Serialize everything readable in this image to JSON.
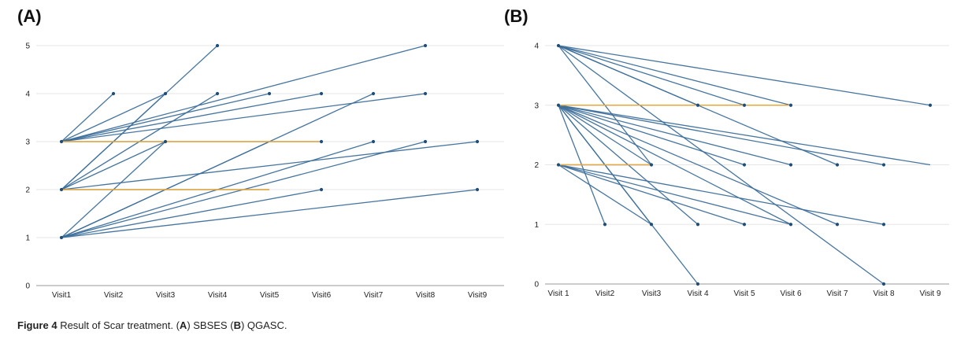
{
  "figure": {
    "caption_prefix": "Figure 4",
    "caption_text": " Result of Scar treatment. (",
    "caption_a": "A",
    "caption_mid1": ") SBSES (",
    "caption_b": "B",
    "caption_mid2": ") QGASC."
  },
  "colors": {
    "line": "#3c6e9a",
    "highlight": "#e8a73a",
    "grid": "#e6e6e6",
    "axis": "#999999"
  },
  "chart_data": [
    {
      "panel": "(A)",
      "type": "line",
      "categories": [
        "Visit1",
        "Visit2",
        "Visit3",
        "Visit4",
        "Visit5",
        "Visit6",
        "Visit7",
        "Visit8",
        "Visit9"
      ],
      "y_ticks": [
        "0",
        "1",
        "2",
        "3",
        "4",
        "5"
      ],
      "ylim": [
        0,
        5
      ],
      "grid": true,
      "segments": [
        [
          1,
          3,
          2,
          4
        ],
        [
          1,
          3,
          3,
          4
        ],
        [
          1,
          3,
          5,
          4
        ],
        [
          1,
          3,
          6,
          4
        ],
        [
          1,
          3,
          8,
          4
        ],
        [
          1,
          3,
          8,
          5
        ],
        [
          1,
          3,
          6,
          3
        ],
        [
          1,
          2,
          3,
          4
        ],
        [
          1,
          2,
          4,
          5
        ],
        [
          1,
          2,
          3,
          3
        ],
        [
          1,
          2,
          4,
          4
        ],
        [
          1,
          2,
          9,
          3
        ],
        [
          1,
          2,
          5,
          2
        ],
        [
          1,
          1,
          3,
          3
        ],
        [
          1,
          1,
          5,
          3
        ],
        [
          1,
          1,
          6,
          2
        ],
        [
          1,
          1,
          7,
          3
        ],
        [
          1,
          1,
          7,
          4
        ],
        [
          1,
          1,
          9,
          2
        ],
        [
          1,
          1,
          8,
          3
        ]
      ],
      "highlight_segments": [
        [
          1,
          3,
          6,
          3
        ],
        [
          1,
          2,
          5,
          2
        ]
      ],
      "points": [
        [
          1,
          1
        ],
        [
          1,
          2
        ],
        [
          1,
          3
        ],
        [
          2,
          4
        ],
        [
          3,
          3
        ],
        [
          3,
          4
        ],
        [
          4,
          4
        ],
        [
          4,
          5
        ],
        [
          5,
          4
        ],
        [
          6,
          2
        ],
        [
          6,
          3
        ],
        [
          6,
          4
        ],
        [
          7,
          3
        ],
        [
          7,
          4
        ],
        [
          8,
          3
        ],
        [
          8,
          4
        ],
        [
          8,
          5
        ],
        [
          9,
          2
        ],
        [
          9,
          3
        ]
      ]
    },
    {
      "panel": "(B)",
      "type": "line",
      "categories": [
        "Visit 1",
        "Visit2",
        "Visit3",
        "Visit 4",
        "Visit 5",
        "Visit 6",
        "Visit 7",
        "Visit 8",
        "Visit 9"
      ],
      "y_ticks": [
        "0",
        "1",
        "2",
        "3",
        "4"
      ],
      "ylim": [
        0,
        4
      ],
      "grid": true,
      "segments": [
        [
          1,
          4,
          4,
          3
        ],
        [
          1,
          4,
          5,
          3
        ],
        [
          1,
          4,
          6,
          3
        ],
        [
          1,
          4,
          9,
          3
        ],
        [
          1,
          4,
          3,
          2
        ],
        [
          1,
          4,
          7,
          2
        ],
        [
          1,
          4,
          8,
          0
        ],
        [
          1,
          3,
          3,
          2
        ],
        [
          1,
          3,
          5,
          2
        ],
        [
          1,
          3,
          6,
          2
        ],
        [
          1,
          3,
          8,
          2
        ],
        [
          1,
          3,
          9,
          2
        ],
        [
          1,
          3,
          2,
          1
        ],
        [
          1,
          3,
          3,
          1
        ],
        [
          1,
          3,
          4,
          1
        ],
        [
          1,
          3,
          6,
          1
        ],
        [
          1,
          3,
          7,
          1
        ],
        [
          1,
          3,
          4,
          0
        ],
        [
          1,
          3,
          6,
          3
        ],
        [
          1,
          2,
          3,
          1
        ],
        [
          1,
          2,
          5,
          1
        ],
        [
          1,
          2,
          6,
          1
        ],
        [
          1,
          2,
          8,
          1
        ],
        [
          1,
          2,
          3,
          2
        ]
      ],
      "highlight_segments": [
        [
          1,
          3,
          6,
          3
        ],
        [
          1,
          2,
          3,
          2
        ]
      ],
      "points": [
        [
          1,
          2
        ],
        [
          1,
          3
        ],
        [
          1,
          4
        ],
        [
          2,
          1
        ],
        [
          3,
          1
        ],
        [
          3,
          2
        ],
        [
          4,
          0
        ],
        [
          4,
          1
        ],
        [
          4,
          3
        ],
        [
          5,
          1
        ],
        [
          5,
          2
        ],
        [
          5,
          3
        ],
        [
          6,
          1
        ],
        [
          6,
          2
        ],
        [
          6,
          3
        ],
        [
          7,
          1
        ],
        [
          7,
          2
        ],
        [
          8,
          0
        ],
        [
          8,
          1
        ],
        [
          8,
          2
        ],
        [
          9,
          3
        ]
      ]
    }
  ]
}
